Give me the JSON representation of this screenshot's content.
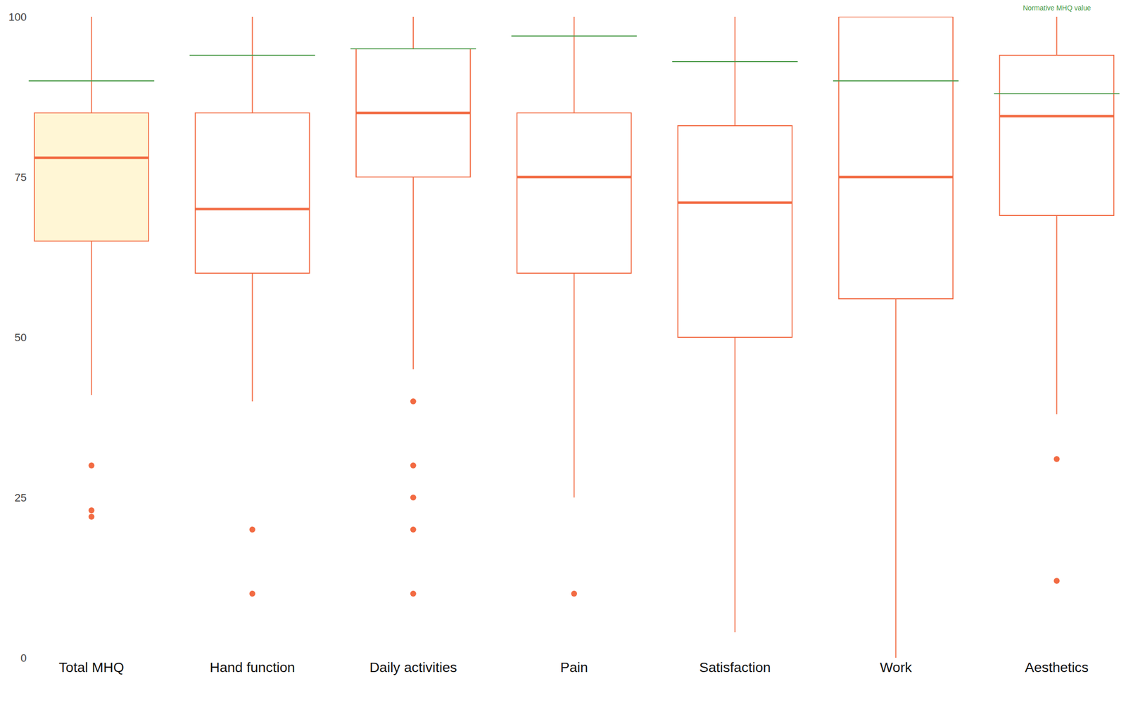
{
  "chart_data": {
    "type": "box",
    "categories": [
      "Total MHQ",
      "Hand function",
      "Daily activities",
      "Pain",
      "Satisfaction",
      "Work",
      "Aesthetics"
    ],
    "q1": [
      65,
      60,
      75,
      60,
      50,
      56,
      69
    ],
    "median": [
      78,
      70,
      85,
      75,
      71,
      75,
      84.5
    ],
    "q3": [
      85,
      85,
      95,
      85,
      83,
      100,
      94
    ],
    "lowerfence": [
      41,
      40,
      45,
      25,
      4,
      0,
      38
    ],
    "upperfence": [
      100,
      100,
      100,
      100,
      100,
      100,
      100
    ],
    "outliers": [
      [
        30,
        23,
        22
      ],
      [
        20,
        10
      ],
      [
        40,
        30,
        25,
        20,
        10
      ],
      [
        10
      ],
      [],
      [],
      [
        31,
        12
      ]
    ],
    "normative": {
      "name": "Normative MHQ value",
      "values": [
        90,
        94,
        95,
        97,
        93,
        90,
        88
      ],
      "color": "#4a9a48"
    },
    "color": "#f26b43",
    "colors": [
      "#fff6d5",
      "#ffffff",
      "#ffffff",
      "#ffffff",
      "#ffffff",
      "#ffffff",
      "#ffffff"
    ],
    "ylim": [
      0,
      100
    ],
    "yticks": [
      0,
      25,
      50,
      75,
      100
    ],
    "grid": false
  }
}
